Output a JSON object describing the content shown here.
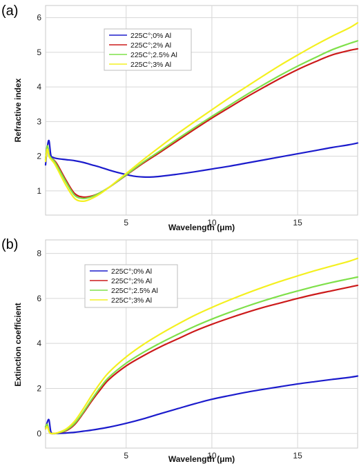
{
  "chart_data": [
    {
      "type": "line",
      "panel_label": "(a)",
      "xlabel": "Wavelength (μm)",
      "ylabel": "Refractive index",
      "xlim": [
        0.3,
        18.5
      ],
      "ylim": [
        0.3,
        6.35
      ],
      "xticks": [
        5,
        10,
        15
      ],
      "yticks": [
        1,
        2,
        3,
        4,
        5,
        6
      ],
      "grid": true,
      "legend_position": "top-left",
      "series": [
        {
          "name": "225C°;0% Al",
          "color": "#1b1bcc",
          "x": [
            0.3,
            0.4,
            0.5,
            0.6,
            0.7,
            1,
            1.5,
            2,
            2.5,
            3,
            3.5,
            4,
            4.5,
            5,
            5.5,
            6,
            6.5,
            7,
            8,
            9,
            10,
            11,
            12,
            13,
            14,
            15,
            16,
            17,
            18,
            18.5
          ],
          "y": [
            1.75,
            2.25,
            2.45,
            2.05,
            1.97,
            1.93,
            1.9,
            1.87,
            1.82,
            1.75,
            1.68,
            1.6,
            1.53,
            1.47,
            1.42,
            1.4,
            1.4,
            1.42,
            1.48,
            1.55,
            1.63,
            1.71,
            1.8,
            1.89,
            1.98,
            2.07,
            2.16,
            2.25,
            2.33,
            2.38
          ]
        },
        {
          "name": "225C°;2% Al",
          "color": "#cc1a1a",
          "x": [
            0.3,
            0.4,
            0.5,
            0.6,
            0.8,
            1,
            1.5,
            2,
            2.5,
            3,
            3.5,
            4,
            5,
            6,
            7,
            8,
            9,
            10,
            11,
            12,
            13,
            14,
            15,
            16,
            17,
            18,
            18.5
          ],
          "y": [
            1.9,
            2.3,
            2.05,
            1.96,
            1.88,
            1.75,
            1.3,
            0.92,
            0.82,
            0.85,
            0.95,
            1.1,
            1.45,
            1.8,
            2.12,
            2.45,
            2.78,
            3.1,
            3.4,
            3.7,
            3.98,
            4.25,
            4.5,
            4.72,
            4.92,
            5.05,
            5.1
          ]
        },
        {
          "name": "225C°;2.5% Al",
          "color": "#7fe04a",
          "x": [
            0.3,
            0.4,
            0.5,
            0.6,
            0.8,
            1,
            1.5,
            2,
            2.5,
            3,
            3.5,
            4,
            5,
            6,
            7,
            8,
            9,
            10,
            11,
            12,
            13,
            14,
            15,
            16,
            17,
            18,
            18.5
          ],
          "y": [
            1.9,
            2.3,
            2.05,
            1.96,
            1.86,
            1.7,
            1.25,
            0.87,
            0.78,
            0.83,
            0.95,
            1.1,
            1.46,
            1.83,
            2.16,
            2.5,
            2.83,
            3.15,
            3.46,
            3.77,
            4.06,
            4.34,
            4.6,
            4.84,
            5.07,
            5.25,
            5.33
          ]
        },
        {
          "name": "225C°;3% Al",
          "color": "#f4f020",
          "x": [
            0.3,
            0.4,
            0.5,
            0.6,
            0.8,
            1,
            1.5,
            2,
            2.5,
            3,
            3.5,
            4,
            5,
            6,
            7,
            8,
            9,
            10,
            11,
            12,
            13,
            14,
            15,
            16,
            17,
            18,
            18.5
          ],
          "y": [
            1.85,
            2.2,
            2.0,
            1.92,
            1.8,
            1.62,
            1.15,
            0.78,
            0.7,
            0.78,
            0.92,
            1.1,
            1.5,
            1.9,
            2.28,
            2.65,
            3.0,
            3.34,
            3.68,
            4.0,
            4.32,
            4.63,
            4.92,
            5.2,
            5.46,
            5.7,
            5.85
          ]
        }
      ]
    },
    {
      "type": "line",
      "panel_label": "(b)",
      "xlabel": "Wavelength (μm)",
      "ylabel": "Extinction coefficient",
      "xlim": [
        0.3,
        18.5
      ],
      "ylim": [
        -0.65,
        8.6
      ],
      "xticks": [
        5,
        10,
        15
      ],
      "yticks": [
        0,
        2,
        4,
        6,
        8
      ],
      "grid": true,
      "legend_position": "top-left",
      "series": [
        {
          "name": "225C°;0% Al",
          "color": "#1b1bcc",
          "x": [
            0.3,
            0.4,
            0.5,
            0.6,
            0.7,
            1,
            1.5,
            2,
            2.5,
            3,
            4,
            5,
            6,
            7,
            8,
            9,
            10,
            11,
            12,
            13,
            14,
            15,
            16,
            17,
            18,
            18.5
          ],
          "y": [
            0.2,
            0.5,
            0.6,
            0.1,
            0.0,
            0.0,
            0.02,
            0.05,
            0.1,
            0.15,
            0.28,
            0.45,
            0.65,
            0.88,
            1.1,
            1.32,
            1.52,
            1.68,
            1.83,
            1.96,
            2.08,
            2.2,
            2.3,
            2.4,
            2.49,
            2.55
          ]
        },
        {
          "name": "225C°;2% Al",
          "color": "#cc1a1a",
          "x": [
            0.3,
            0.4,
            0.5,
            0.6,
            0.8,
            1,
            1.5,
            2,
            2.5,
            3,
            3.5,
            4,
            5,
            6,
            7,
            8,
            9,
            10,
            11,
            12,
            13,
            14,
            15,
            16,
            17,
            18,
            18.5
          ],
          "y": [
            0.3,
            0.4,
            0.1,
            0.0,
            0.0,
            0.02,
            0.12,
            0.4,
            0.9,
            1.45,
            1.95,
            2.4,
            3.0,
            3.45,
            3.85,
            4.2,
            4.55,
            4.85,
            5.12,
            5.37,
            5.6,
            5.8,
            6.0,
            6.18,
            6.34,
            6.5,
            6.58
          ]
        },
        {
          "name": "225C°;2.5% Al",
          "color": "#7fe04a",
          "x": [
            0.3,
            0.4,
            0.5,
            0.6,
            0.8,
            1,
            1.5,
            2,
            2.5,
            3,
            3.5,
            4,
            5,
            6,
            7,
            8,
            9,
            10,
            11,
            12,
            13,
            14,
            15,
            16,
            17,
            18,
            18.5
          ],
          "y": [
            0.3,
            0.4,
            0.1,
            0.0,
            0.0,
            0.02,
            0.15,
            0.45,
            0.95,
            1.52,
            2.05,
            2.5,
            3.12,
            3.6,
            4.02,
            4.4,
            4.76,
            5.08,
            5.37,
            5.64,
            5.89,
            6.12,
            6.33,
            6.53,
            6.71,
            6.87,
            6.95
          ]
        },
        {
          "name": "225C°;3% Al",
          "color": "#f4f020",
          "x": [
            0.3,
            0.4,
            0.5,
            0.6,
            0.8,
            1,
            1.5,
            2,
            2.5,
            3,
            3.5,
            4,
            5,
            6,
            7,
            8,
            9,
            10,
            11,
            12,
            13,
            14,
            15,
            16,
            17,
            18,
            18.5
          ],
          "y": [
            0.2,
            0.3,
            0.1,
            0.0,
            0.0,
            0.03,
            0.2,
            0.55,
            1.1,
            1.7,
            2.25,
            2.72,
            3.4,
            3.95,
            4.42,
            4.85,
            5.25,
            5.6,
            5.92,
            6.22,
            6.5,
            6.76,
            7.0,
            7.23,
            7.44,
            7.65,
            7.78
          ]
        }
      ]
    }
  ]
}
